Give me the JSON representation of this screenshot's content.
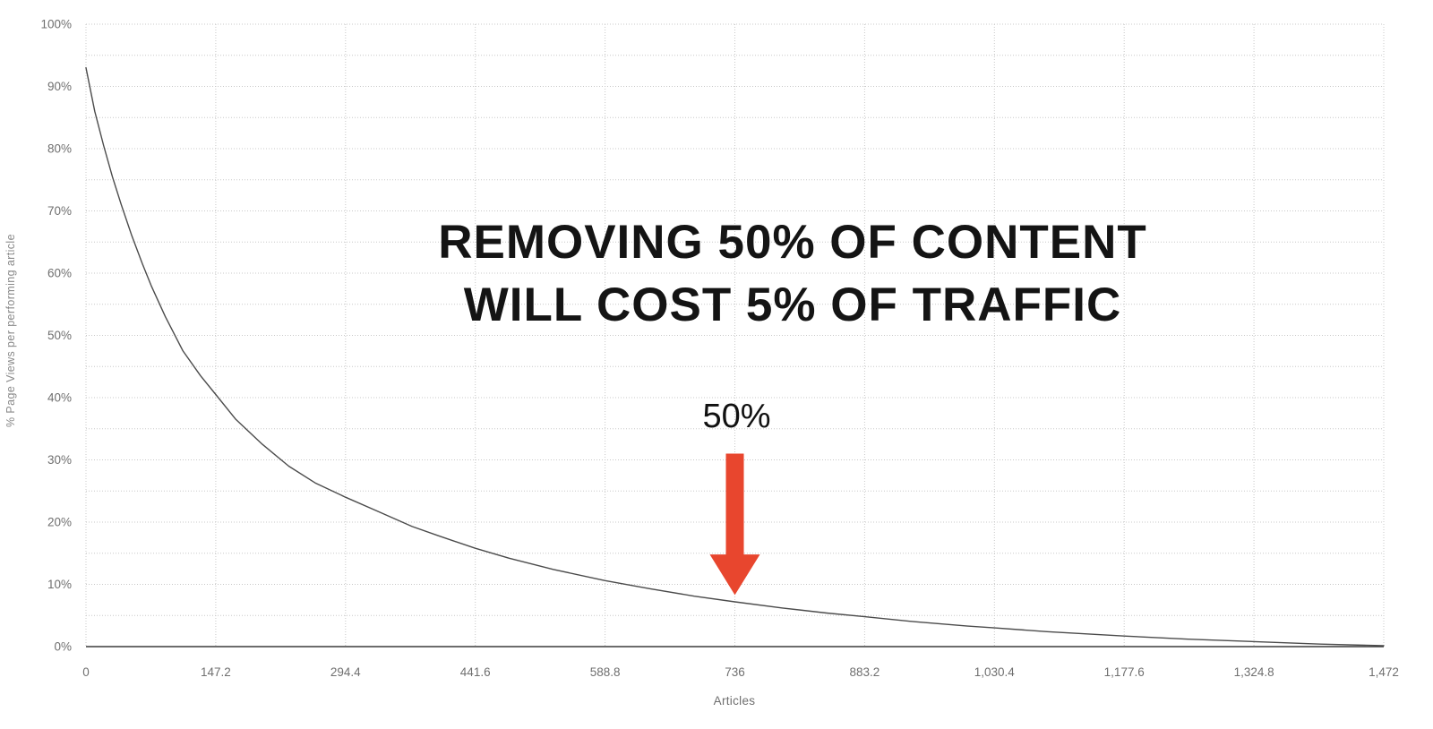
{
  "chart_data": {
    "type": "line",
    "title": "",
    "annotation": {
      "line1": "REMOVING 50% OF CONTENT",
      "line2": "WILL COST 5% OF TRAFFIC"
    },
    "callout": {
      "label": "50%",
      "x": 736,
      "shaft_top_pct": 31,
      "head_base_pct": 14.8,
      "tip_pct": 8.3
    },
    "xlabel": "Articles",
    "ylabel": "% Page Views per performing article",
    "xlim": [
      0,
      1472
    ],
    "ylim": [
      0,
      100
    ],
    "x_ticks": [
      0,
      147.2,
      294.4,
      441.6,
      588.8,
      736,
      883.2,
      1030.4,
      1177.6,
      1324.8,
      1472
    ],
    "x_tick_labels": [
      "0",
      "147.2",
      "294.4",
      "441.6",
      "588.8",
      "736",
      "883.2",
      "1,030.4",
      "1,177.6",
      "1,324.8",
      "1,472"
    ],
    "y_ticks": [
      0,
      10,
      20,
      30,
      40,
      50,
      60,
      70,
      80,
      90,
      100
    ],
    "y_tick_labels": [
      "0%",
      "10%",
      "20%",
      "30%",
      "40%",
      "50%",
      "60%",
      "70%",
      "80%",
      "90%",
      "100%"
    ],
    "grid": {
      "style": "dotted",
      "horizontal_step_pct": 5,
      "vertical_at_x_ticks": true
    },
    "legend": "none",
    "series": [
      {
        "name": "% Page Views per performing article",
        "x": [
          0,
          10,
          20,
          30,
          40,
          52,
          64,
          74,
          90,
          110,
          130,
          147.2,
          170,
          200,
          230,
          260,
          294.4,
          330,
          370,
          400,
          441.6,
          480,
          530,
          588.8,
          640,
          690,
          736,
          790,
          840,
          883.2,
          940,
          1000,
          1030.4,
          1090,
          1177.6,
          1250,
          1324.8,
          1400,
          1472
        ],
        "y": [
          93,
          86,
          80.5,
          75.5,
          71,
          66,
          61.5,
          58,
          53,
          47.5,
          43.5,
          40.5,
          36.5,
          32.5,
          29,
          26.3,
          24,
          21.8,
          19.3,
          17.8,
          15.8,
          14.2,
          12.4,
          10.6,
          9.3,
          8.1,
          7.2,
          6.2,
          5.4,
          4.8,
          4.0,
          3.3,
          3.0,
          2.4,
          1.7,
          1.2,
          0.8,
          0.4,
          0.15
        ]
      }
    ],
    "colors": {
      "line": "#4b4b4b",
      "grid": "#c8c8c8",
      "axis": "#3c3c3c",
      "tick_text": "#6f6f6f",
      "annotation_text": "#141414",
      "arrow": "#e8462e",
      "background": "#ffffff"
    }
  }
}
